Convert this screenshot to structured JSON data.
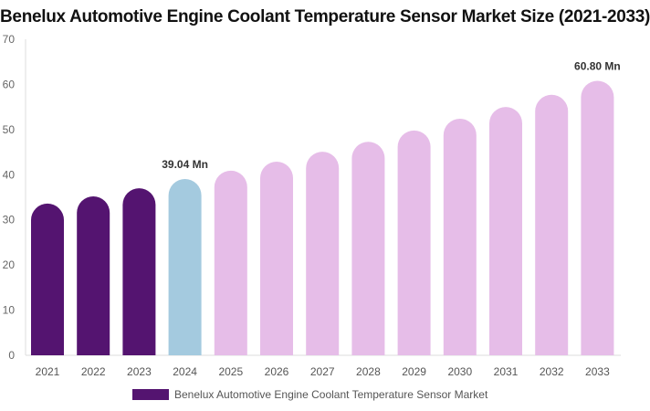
{
  "chart_data": {
    "type": "bar",
    "title": "Benelux Automotive Engine Coolant Temperature Sensor Market Size (2021-2033)",
    "categories": [
      "2021",
      "2022",
      "2023",
      "2024",
      "2025",
      "2026",
      "2027",
      "2028",
      "2029",
      "2030",
      "2031",
      "2032",
      "2033"
    ],
    "series": [
      {
        "name": "Benelux Automotive Engine Coolant Temperature Sensor Market",
        "values": [
          33.6,
          35.2,
          37.0,
          39.04,
          40.9,
          42.9,
          45.1,
          47.3,
          49.8,
          52.4,
          55.0,
          57.7,
          60.8
        ]
      }
    ],
    "data_labels": [
      {
        "category": "2024",
        "text": "39.04 Mn"
      },
      {
        "category": "2033",
        "text": "60.80 Mn"
      }
    ],
    "ylim": [
      0,
      70
    ],
    "yticks": [
      0,
      10,
      20,
      30,
      40,
      50,
      60,
      70
    ],
    "grid": false,
    "legend": "bottom",
    "colors": {
      "historical": "#541470",
      "base_year": "#a4cadf",
      "forecast": "#e6bde8"
    }
  }
}
